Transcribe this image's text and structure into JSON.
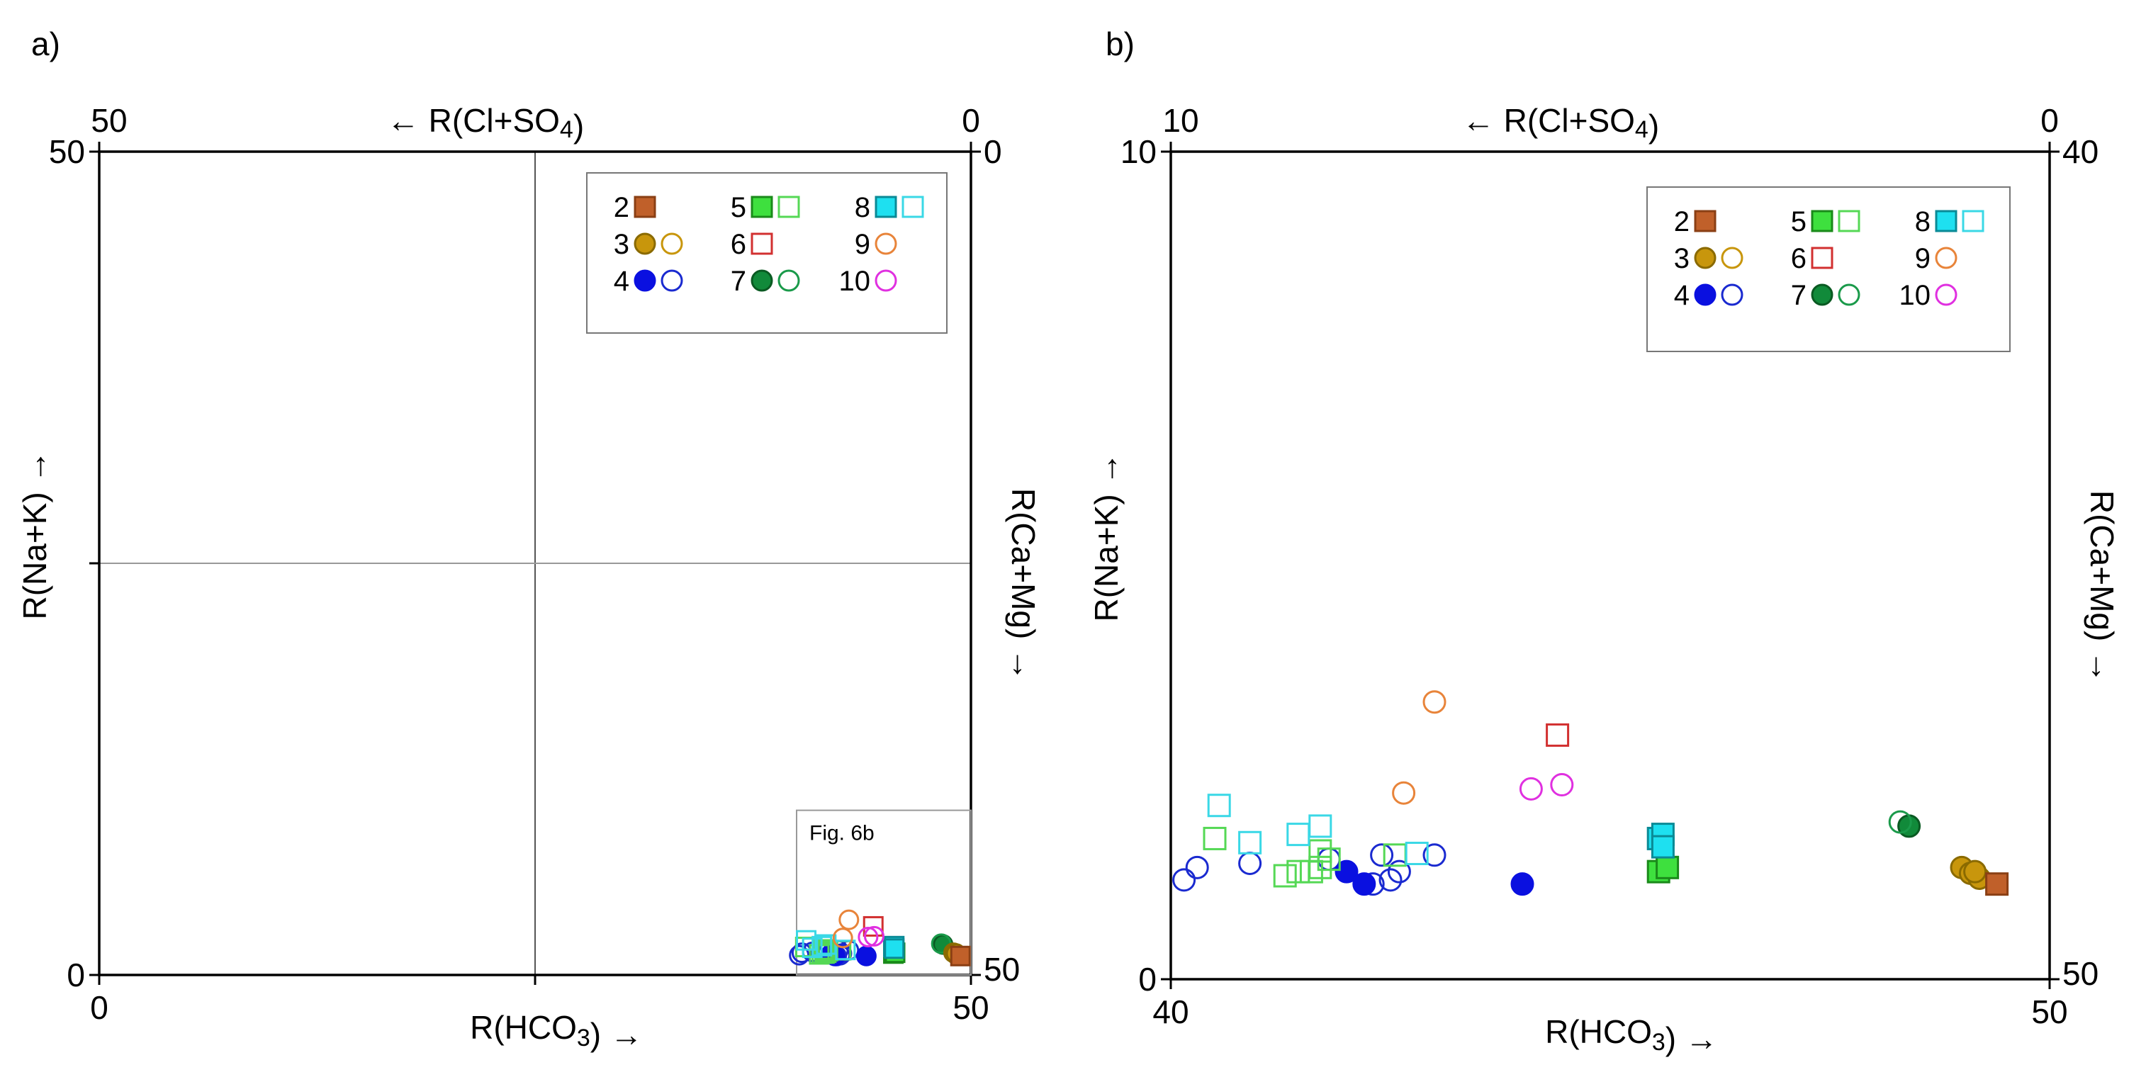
{
  "chart_data": [
    {
      "panel_label": "a)",
      "type": "scatter",
      "xlabel": "R(HCO3) →",
      "ylabel": "R(Na+K) →",
      "top_label": "← R(Cl+SO4)",
      "right_label": "R(Ca+Mg) →",
      "bottom_ticks": [
        "0",
        "50"
      ],
      "left_ticks": [
        "0",
        "50"
      ],
      "top_ticks": [
        "50",
        "0"
      ],
      "right_ticks": [
        "0",
        "50"
      ],
      "xlim": [
        0,
        50
      ],
      "ylim": [
        0,
        50
      ],
      "grid": "midlines",
      "inset_label": "Fig. 6b",
      "legend_placement": "top-right",
      "legend": [
        {
          "label": "2",
          "markers": [
            "sq-fill-brown"
          ]
        },
        {
          "label": "3",
          "markers": [
            "ci-fill-gold",
            "ci-open-gold"
          ]
        },
        {
          "label": "4",
          "markers": [
            "ci-fill-blue",
            "ci-open-blue"
          ]
        },
        {
          "label": "5",
          "markers": [
            "sq-fill-lgreen",
            "sq-open-lgreen"
          ]
        },
        {
          "label": "6",
          "markers": [
            "sq-open-red"
          ]
        },
        {
          "label": "7",
          "markers": [
            "ci-fill-dgreen",
            "ci-open-dgreen"
          ]
        },
        {
          "label": "8",
          "markers": [
            "sq-fill-cyan",
            "sq-open-cyan"
          ]
        },
        {
          "label": "9",
          "markers": [
            "ci-open-orange"
          ]
        },
        {
          "label": "10",
          "markers": [
            "ci-open-magenta"
          ]
        }
      ]
    },
    {
      "panel_label": "b)",
      "type": "scatter",
      "xlabel": "R(HCO3) →",
      "ylabel": "R(Na+K) →",
      "top_label": "← R(Cl+SO4)",
      "right_label": "R(Ca+Mg) →",
      "bottom_ticks": [
        "40",
        "50"
      ],
      "left_ticks": [
        "0",
        "10"
      ],
      "top_ticks": [
        "10",
        "0"
      ],
      "right_ticks": [
        "40",
        "50"
      ],
      "xlim": [
        40,
        50
      ],
      "ylim": [
        0,
        10
      ],
      "legend_placement": "top-right",
      "legend": [
        {
          "label": "2",
          "markers": [
            "sq-fill-brown"
          ]
        },
        {
          "label": "3",
          "markers": [
            "ci-fill-gold",
            "ci-open-gold"
          ]
        },
        {
          "label": "4",
          "markers": [
            "ci-fill-blue",
            "ci-open-blue"
          ]
        },
        {
          "label": "5",
          "markers": [
            "sq-fill-lgreen",
            "sq-open-lgreen"
          ]
        },
        {
          "label": "6",
          "markers": [
            "sq-open-red"
          ]
        },
        {
          "label": "7",
          "markers": [
            "ci-fill-dgreen",
            "ci-open-dgreen"
          ]
        },
        {
          "label": "8",
          "markers": [
            "sq-fill-cyan",
            "sq-open-cyan"
          ]
        },
        {
          "label": "9",
          "markers": [
            "ci-open-orange"
          ]
        },
        {
          "label": "10",
          "markers": [
            "ci-open-magenta"
          ]
        }
      ]
    }
  ],
  "marker_styles": {
    "sq-fill-brown": {
      "shape": "square",
      "fill": "#c0602a",
      "stroke": "#8a3f14"
    },
    "ci-fill-gold": {
      "shape": "circle",
      "fill": "#c8960c",
      "stroke": "#8a6a00"
    },
    "ci-open-gold": {
      "shape": "circle",
      "fill": "none",
      "stroke": "#c8960c"
    },
    "ci-fill-blue": {
      "shape": "circle",
      "fill": "#0a10e0",
      "stroke": "#0a10e0"
    },
    "ci-open-blue": {
      "shape": "circle",
      "fill": "none",
      "stroke": "#1a2ad0"
    },
    "sq-fill-lgreen": {
      "shape": "square",
      "fill": "#3ee03e",
      "stroke": "#1a8a1a"
    },
    "sq-open-lgreen": {
      "shape": "square",
      "fill": "none",
      "stroke": "#55d855"
    },
    "sq-open-red": {
      "shape": "square",
      "fill": "none",
      "stroke": "#d23030"
    },
    "ci-fill-dgreen": {
      "shape": "circle",
      "fill": "#118a3a",
      "stroke": "#0a5a22"
    },
    "ci-open-dgreen": {
      "shape": "circle",
      "fill": "none",
      "stroke": "#1a9a4a"
    },
    "sq-fill-cyan": {
      "shape": "square",
      "fill": "#1ee0f0",
      "stroke": "#0a8a96"
    },
    "sq-open-cyan": {
      "shape": "square",
      "fill": "none",
      "stroke": "#3ad8e6"
    },
    "ci-open-orange": {
      "shape": "circle",
      "fill": "none",
      "stroke": "#e8843a"
    },
    "ci-open-magenta": {
      "shape": "circle",
      "fill": "none",
      "stroke": "#e030e0"
    }
  },
  "points": [
    {
      "x": 40.15,
      "y": 1.2,
      "m": "ci-open-blue"
    },
    {
      "x": 40.3,
      "y": 1.35,
      "m": "ci-open-blue"
    },
    {
      "x": 40.9,
      "y": 1.4,
      "m": "ci-open-blue"
    },
    {
      "x": 41.8,
      "y": 1.45,
      "m": "ci-open-blue"
    },
    {
      "x": 42.3,
      "y": 1.15,
      "m": "ci-open-blue"
    },
    {
      "x": 42.5,
      "y": 1.2,
      "m": "ci-open-blue"
    },
    {
      "x": 42.4,
      "y": 1.5,
      "m": "ci-open-blue"
    },
    {
      "x": 42.6,
      "y": 1.3,
      "m": "ci-open-blue"
    },
    {
      "x": 43.0,
      "y": 1.5,
      "m": "ci-open-blue"
    },
    {
      "x": 42.0,
      "y": 1.3,
      "m": "ci-fill-blue"
    },
    {
      "x": 42.2,
      "y": 1.15,
      "m": "ci-fill-blue"
    },
    {
      "x": 44.0,
      "y": 1.15,
      "m": "ci-fill-blue"
    },
    {
      "x": 40.5,
      "y": 1.7,
      "m": "sq-open-lgreen"
    },
    {
      "x": 41.3,
      "y": 1.25,
      "m": "sq-open-lgreen"
    },
    {
      "x": 41.45,
      "y": 1.3,
      "m": "sq-open-lgreen"
    },
    {
      "x": 41.6,
      "y": 1.3,
      "m": "sq-open-lgreen"
    },
    {
      "x": 41.7,
      "y": 1.35,
      "m": "sq-open-lgreen"
    },
    {
      "x": 41.7,
      "y": 1.55,
      "m": "sq-open-lgreen"
    },
    {
      "x": 41.8,
      "y": 1.45,
      "m": "sq-open-lgreen"
    },
    {
      "x": 42.55,
      "y": 1.5,
      "m": "sq-open-lgreen"
    },
    {
      "x": 40.55,
      "y": 2.1,
      "m": "sq-open-cyan"
    },
    {
      "x": 40.9,
      "y": 1.65,
      "m": "sq-open-cyan"
    },
    {
      "x": 41.45,
      "y": 1.75,
      "m": "sq-open-cyan"
    },
    {
      "x": 41.7,
      "y": 1.85,
      "m": "sq-open-cyan"
    },
    {
      "x": 42.8,
      "y": 1.52,
      "m": "sq-open-cyan"
    },
    {
      "x": 45.55,
      "y": 1.3,
      "m": "sq-fill-lgreen"
    },
    {
      "x": 45.65,
      "y": 1.35,
      "m": "sq-fill-lgreen"
    },
    {
      "x": 45.55,
      "y": 1.7,
      "m": "sq-fill-cyan"
    },
    {
      "x": 45.6,
      "y": 1.75,
      "m": "sq-fill-cyan"
    },
    {
      "x": 45.6,
      "y": 1.6,
      "m": "sq-fill-cyan"
    },
    {
      "x": 42.65,
      "y": 2.25,
      "m": "ci-open-orange"
    },
    {
      "x": 43.0,
      "y": 3.35,
      "m": "ci-open-orange"
    },
    {
      "x": 44.4,
      "y": 2.95,
      "m": "sq-open-red"
    },
    {
      "x": 44.1,
      "y": 2.3,
      "m": "ci-open-magenta"
    },
    {
      "x": 44.45,
      "y": 2.35,
      "m": "ci-fill-magenta-fallback"
    },
    {
      "x": 48.4,
      "y": 1.85,
      "m": "ci-fill-dgreen"
    },
    {
      "x": 48.3,
      "y": 1.9,
      "m": "ci-open-dgreen"
    },
    {
      "x": 49.0,
      "y": 1.35,
      "m": "ci-fill-gold"
    },
    {
      "x": 49.1,
      "y": 1.28,
      "m": "ci-fill-gold"
    },
    {
      "x": 49.2,
      "y": 1.22,
      "m": "ci-fill-gold"
    },
    {
      "x": 49.15,
      "y": 1.3,
      "m": "ci-fill-gold"
    },
    {
      "x": 49.4,
      "y": 1.15,
      "m": "sq-fill-brown"
    }
  ]
}
